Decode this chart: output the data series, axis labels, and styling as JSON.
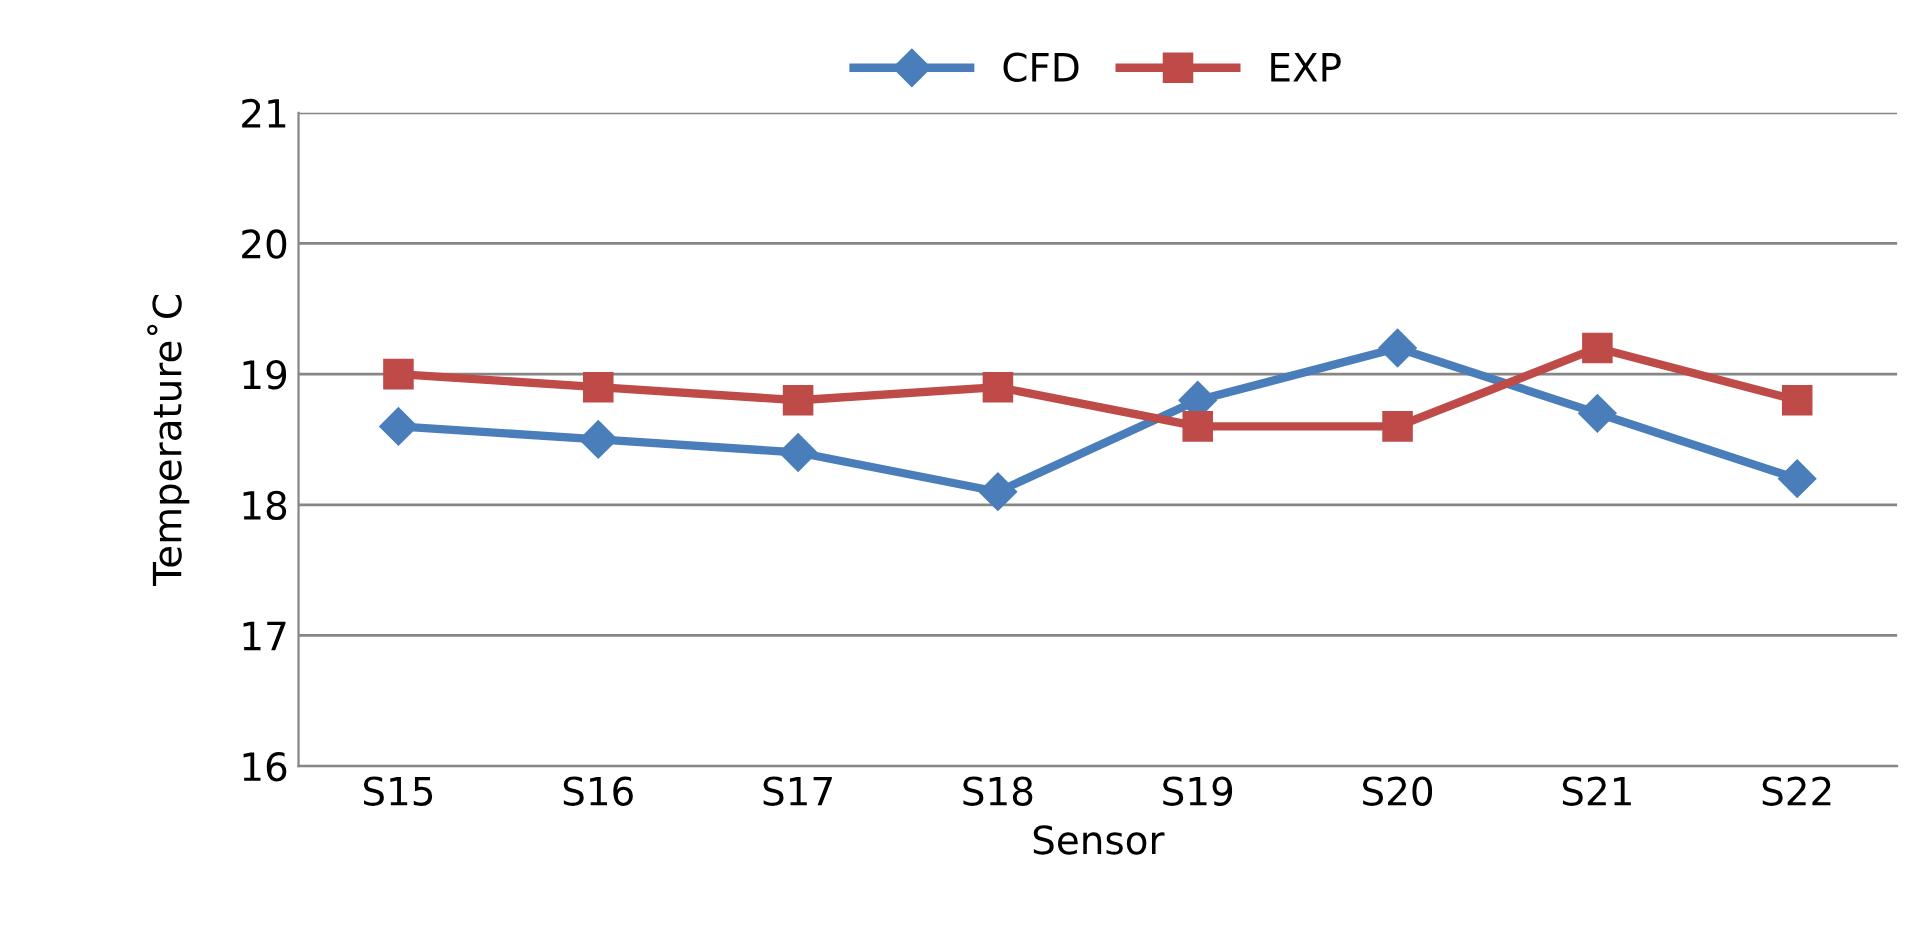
{
  "chart_data": {
    "type": "line",
    "xlabel": "Sensor",
    "ylabel": "Temperature˚C",
    "categories": [
      "S15",
      "S16",
      "S17",
      "S18",
      "S19",
      "S20",
      "S21",
      "S22"
    ],
    "series": [
      {
        "name": "CFD",
        "color": "#4a7ebb",
        "marker": "diamond",
        "values": [
          18.6,
          18.5,
          18.4,
          18.1,
          18.8,
          19.2,
          18.7,
          18.2
        ]
      },
      {
        "name": "EXP",
        "color": "#be4b48",
        "marker": "square",
        "values": [
          19.0,
          18.9,
          18.8,
          18.9,
          18.6,
          18.6,
          19.2,
          18.8
        ]
      }
    ],
    "ylim": [
      16,
      21
    ],
    "yticks": [
      16,
      17,
      18,
      19,
      20,
      21
    ],
    "grid": "y",
    "legend": "top",
    "line_style": "solid"
  }
}
